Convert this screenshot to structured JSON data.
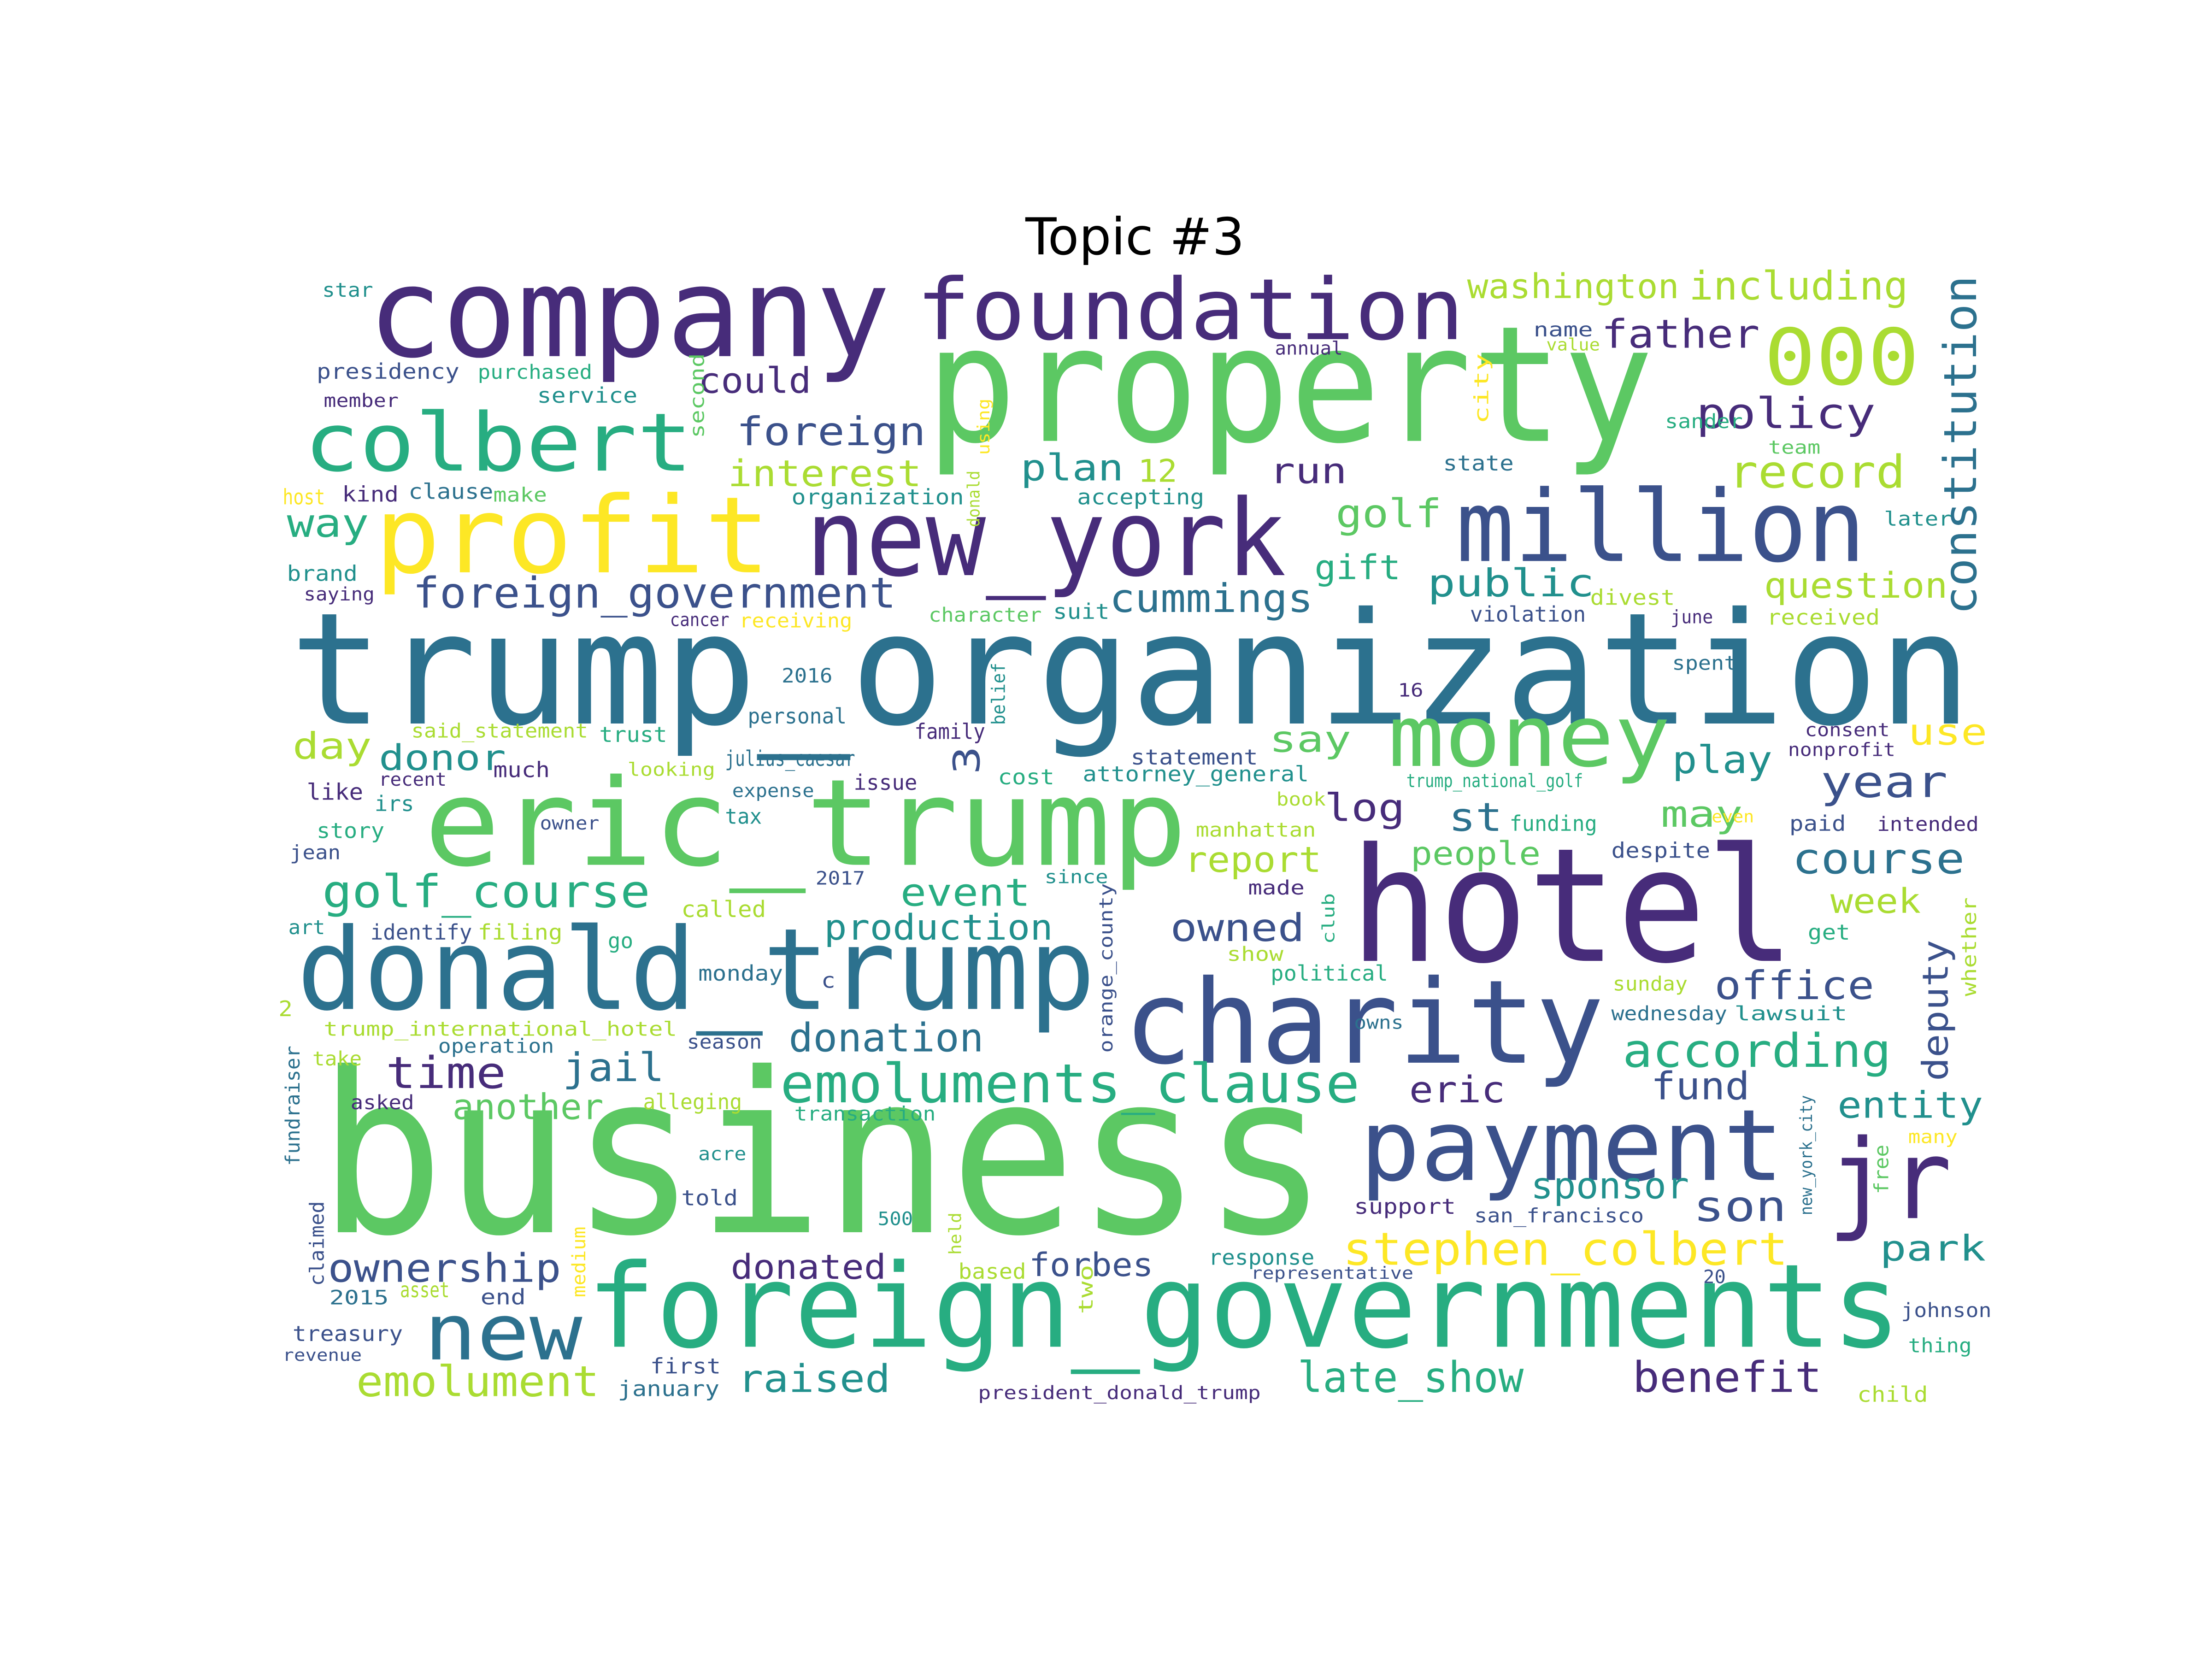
{
  "title": "Topic #3",
  "palette": {
    "purple": "#472c7a",
    "indigo": "#3b518b",
    "blue": "#2c718e",
    "teal": "#21908d",
    "green": "#27ad81",
    "lime": "#5cc863",
    "bright": "#aadc32",
    "yellow": "#fde725"
  },
  "words": [
    {
      "text": "business",
      "color": "lime"
    },
    {
      "text": "trump_organization",
      "color": "blue"
    },
    {
      "text": "property",
      "color": "lime"
    },
    {
      "text": "hotel",
      "color": "purple"
    },
    {
      "text": "company",
      "color": "purple"
    },
    {
      "text": "eric_trump",
      "color": "lime"
    },
    {
      "text": "donald_trump",
      "color": "blue"
    },
    {
      "text": "foreign_governments",
      "color": "green"
    },
    {
      "text": "charity",
      "color": "indigo"
    },
    {
      "text": "profit",
      "color": "yellow"
    },
    {
      "text": "new_york",
      "color": "purple"
    },
    {
      "text": "foundation",
      "color": "purple"
    },
    {
      "text": "million",
      "color": "indigo"
    },
    {
      "text": "payment",
      "color": "indigo"
    },
    {
      "text": "jr",
      "color": "purple"
    },
    {
      "text": "colbert",
      "color": "green"
    },
    {
      "text": "money",
      "color": "lime"
    },
    {
      "text": "new",
      "color": "blue"
    },
    {
      "text": "000",
      "color": "bright"
    },
    {
      "text": "emoluments_clause",
      "color": "green"
    },
    {
      "text": "stephen_colbert",
      "color": "yellow"
    },
    {
      "text": "constitution",
      "color": "blue"
    },
    {
      "text": "foreign_government",
      "color": "indigo"
    },
    {
      "text": "golf_course",
      "color": "green"
    },
    {
      "text": "according",
      "color": "green"
    },
    {
      "text": "record",
      "color": "bright"
    },
    {
      "text": "policy",
      "color": "purple"
    },
    {
      "text": "emolument",
      "color": "bright"
    },
    {
      "text": "late_show",
      "color": "green"
    },
    {
      "text": "ownership",
      "color": "indigo"
    },
    {
      "text": "foreign",
      "color": "indigo"
    },
    {
      "text": "donation",
      "color": "blue"
    },
    {
      "text": "course",
      "color": "blue"
    },
    {
      "text": "washington",
      "color": "bright"
    },
    {
      "text": "including",
      "color": "bright"
    },
    {
      "text": "office",
      "color": "indigo"
    },
    {
      "text": "year",
      "color": "indigo"
    },
    {
      "text": "father",
      "color": "purple"
    },
    {
      "text": "cummings",
      "color": "blue"
    },
    {
      "text": "production",
      "color": "teal"
    },
    {
      "text": "question",
      "color": "bright"
    },
    {
      "text": "interest",
      "color": "bright"
    },
    {
      "text": "benefit",
      "color": "purple"
    },
    {
      "text": "raised",
      "color": "teal"
    },
    {
      "text": "time",
      "color": "purple"
    },
    {
      "text": "public",
      "color": "teal"
    },
    {
      "text": "son",
      "color": "indigo"
    },
    {
      "text": "deputy",
      "color": "indigo"
    },
    {
      "text": "entity",
      "color": "teal"
    },
    {
      "text": "sponsor",
      "color": "teal"
    },
    {
      "text": "another",
      "color": "lime"
    },
    {
      "text": "event",
      "color": "green"
    },
    {
      "text": "owned",
      "color": "indigo"
    },
    {
      "text": "report",
      "color": "bright"
    },
    {
      "text": "jail",
      "color": "blue"
    },
    {
      "text": "could",
      "color": "purple"
    },
    {
      "text": "plan",
      "color": "teal"
    },
    {
      "text": "golf",
      "color": "lime"
    },
    {
      "text": "run",
      "color": "purple"
    },
    {
      "text": "way",
      "color": "green"
    },
    {
      "text": "day",
      "color": "bright"
    },
    {
      "text": "donor",
      "color": "teal"
    },
    {
      "text": "say",
      "color": "lime"
    },
    {
      "text": "log",
      "color": "purple"
    },
    {
      "text": "st",
      "color": "blue"
    },
    {
      "text": "may",
      "color": "lime"
    },
    {
      "text": "use",
      "color": "yellow"
    },
    {
      "text": "play",
      "color": "teal"
    },
    {
      "text": "week",
      "color": "bright"
    },
    {
      "text": "fund",
      "color": "indigo"
    },
    {
      "text": "eric",
      "color": "purple"
    },
    {
      "text": "park",
      "color": "teal"
    },
    {
      "text": "forbes",
      "color": "indigo"
    },
    {
      "text": "donated",
      "color": "purple"
    },
    {
      "text": "people",
      "color": "lime"
    },
    {
      "text": "gift",
      "color": "green"
    },
    {
      "text": "12",
      "color": "bright"
    },
    {
      "text": "3",
      "color": "indigo"
    },
    {
      "text": "star",
      "color": "teal"
    },
    {
      "text": "presidency",
      "color": "indigo"
    },
    {
      "text": "purchased",
      "color": "green"
    },
    {
      "text": "member",
      "color": "purple"
    },
    {
      "text": "service",
      "color": "teal"
    },
    {
      "text": "second",
      "color": "lime"
    },
    {
      "text": "using",
      "color": "yellow"
    },
    {
      "text": "organization",
      "color": "teal"
    },
    {
      "text": "accepting",
      "color": "teal"
    },
    {
      "text": "host",
      "color": "yellow"
    },
    {
      "text": "kind",
      "color": "purple"
    },
    {
      "text": "clause",
      "color": "blue"
    },
    {
      "text": "make",
      "color": "lime"
    },
    {
      "text": "brand",
      "color": "teal"
    },
    {
      "text": "saying",
      "color": "purple"
    },
    {
      "text": "cancer",
      "color": "purple"
    },
    {
      "text": "receiving",
      "color": "yellow"
    },
    {
      "text": "character",
      "color": "lime"
    },
    {
      "text": "suit",
      "color": "teal"
    },
    {
      "text": "donald",
      "color": "bright"
    },
    {
      "text": "annual",
      "color": "purple"
    },
    {
      "text": "name",
      "color": "indigo"
    },
    {
      "text": "value",
      "color": "bright"
    },
    {
      "text": "sander",
      "color": "green"
    },
    {
      "text": "team",
      "color": "lime"
    },
    {
      "text": "city",
      "color": "yellow"
    },
    {
      "text": "state",
      "color": "blue"
    },
    {
      "text": "later",
      "color": "teal"
    },
    {
      "text": "divest",
      "color": "bright"
    },
    {
      "text": "violation",
      "color": "indigo"
    },
    {
      "text": "june",
      "color": "purple"
    },
    {
      "text": "received",
      "color": "bright"
    },
    {
      "text": "spent",
      "color": "blue"
    },
    {
      "text": "2016",
      "color": "blue"
    },
    {
      "text": "16",
      "color": "purple"
    },
    {
      "text": "personal",
      "color": "blue"
    },
    {
      "text": "family",
      "color": "purple"
    },
    {
      "text": "belief",
      "color": "teal"
    },
    {
      "text": "said_statement",
      "color": "bright"
    },
    {
      "text": "trust",
      "color": "green"
    },
    {
      "text": "julius_caesar",
      "color": "blue"
    },
    {
      "text": "statement",
      "color": "indigo"
    },
    {
      "text": "consent",
      "color": "purple"
    },
    {
      "text": "nonprofit",
      "color": "purple"
    },
    {
      "text": "recent",
      "color": "purple"
    },
    {
      "text": "much",
      "color": "purple"
    },
    {
      "text": "looking",
      "color": "bright"
    },
    {
      "text": "expense",
      "color": "blue"
    },
    {
      "text": "issue",
      "color": "purple"
    },
    {
      "text": "cost",
      "color": "green"
    },
    {
      "text": "attorney_general",
      "color": "teal"
    },
    {
      "text": "trump_national_golf",
      "color": "green"
    },
    {
      "text": "like",
      "color": "purple"
    },
    {
      "text": "irs",
      "color": "teal"
    },
    {
      "text": "owner",
      "color": "indigo"
    },
    {
      "text": "tax",
      "color": "teal"
    },
    {
      "text": "manhattan",
      "color": "bright"
    },
    {
      "text": "book",
      "color": "bright"
    },
    {
      "text": "funding",
      "color": "green"
    },
    {
      "text": "even",
      "color": "yellow"
    },
    {
      "text": "paid",
      "color": "indigo"
    },
    {
      "text": "intended",
      "color": "purple"
    },
    {
      "text": "story",
      "color": "green"
    },
    {
      "text": "jean",
      "color": "indigo"
    },
    {
      "text": "2017",
      "color": "indigo"
    },
    {
      "text": "despite",
      "color": "indigo"
    },
    {
      "text": "called",
      "color": "bright"
    },
    {
      "text": "since",
      "color": "teal"
    },
    {
      "text": "orange_county",
      "color": "indigo"
    },
    {
      "text": "made",
      "color": "purple"
    },
    {
      "text": "art",
      "color": "teal"
    },
    {
      "text": "identify",
      "color": "indigo"
    },
    {
      "text": "filing",
      "color": "bright"
    },
    {
      "text": "go",
      "color": "green"
    },
    {
      "text": "club",
      "color": "green"
    },
    {
      "text": "get",
      "color": "green"
    },
    {
      "text": "whether",
      "color": "bright"
    },
    {
      "text": "show",
      "color": "bright"
    },
    {
      "text": "monday",
      "color": "blue"
    },
    {
      "text": "c",
      "color": "indigo"
    },
    {
      "text": "political",
      "color": "green"
    },
    {
      "text": "sunday",
      "color": "bright"
    },
    {
      "text": "2",
      "color": "bright"
    },
    {
      "text": "trump_international_hotel",
      "color": "bright"
    },
    {
      "text": "owns",
      "color": "blue"
    },
    {
      "text": "wednesday",
      "color": "blue"
    },
    {
      "text": "lawsuit",
      "color": "teal"
    },
    {
      "text": "operation",
      "color": "blue"
    },
    {
      "text": "season",
      "color": "indigo"
    },
    {
      "text": "fundraiser",
      "color": "blue"
    },
    {
      "text": "take",
      "color": "bright"
    },
    {
      "text": "asked",
      "color": "purple"
    },
    {
      "text": "alleging",
      "color": "bright"
    },
    {
      "text": "transaction",
      "color": "green"
    },
    {
      "text": "new_york_city",
      "color": "blue"
    },
    {
      "text": "many",
      "color": "yellow"
    },
    {
      "text": "acre",
      "color": "teal"
    },
    {
      "text": "told",
      "color": "indigo"
    },
    {
      "text": "support",
      "color": "purple"
    },
    {
      "text": "san_francisco",
      "color": "indigo"
    },
    {
      "text": "free",
      "color": "lime"
    },
    {
      "text": "claimed",
      "color": "indigo"
    },
    {
      "text": "medium",
      "color": "yellow"
    },
    {
      "text": "500",
      "color": "teal"
    },
    {
      "text": "held",
      "color": "bright"
    },
    {
      "text": "response",
      "color": "teal"
    },
    {
      "text": "based",
      "color": "bright"
    },
    {
      "text": "representative",
      "color": "indigo"
    },
    {
      "text": "20",
      "color": "indigo"
    },
    {
      "text": "two",
      "color": "bright"
    },
    {
      "text": "2015",
      "color": "blue"
    },
    {
      "text": "asset",
      "color": "bright"
    },
    {
      "text": "end",
      "color": "indigo"
    },
    {
      "text": "johnson",
      "color": "indigo"
    },
    {
      "text": "treasury",
      "color": "indigo"
    },
    {
      "text": "thing",
      "color": "green"
    },
    {
      "text": "revenue",
      "color": "indigo"
    },
    {
      "text": "first",
      "color": "indigo"
    },
    {
      "text": "january",
      "color": "blue"
    },
    {
      "text": "president_donald_trump",
      "color": "purple"
    },
    {
      "text": "child",
      "color": "bright"
    }
  ]
}
